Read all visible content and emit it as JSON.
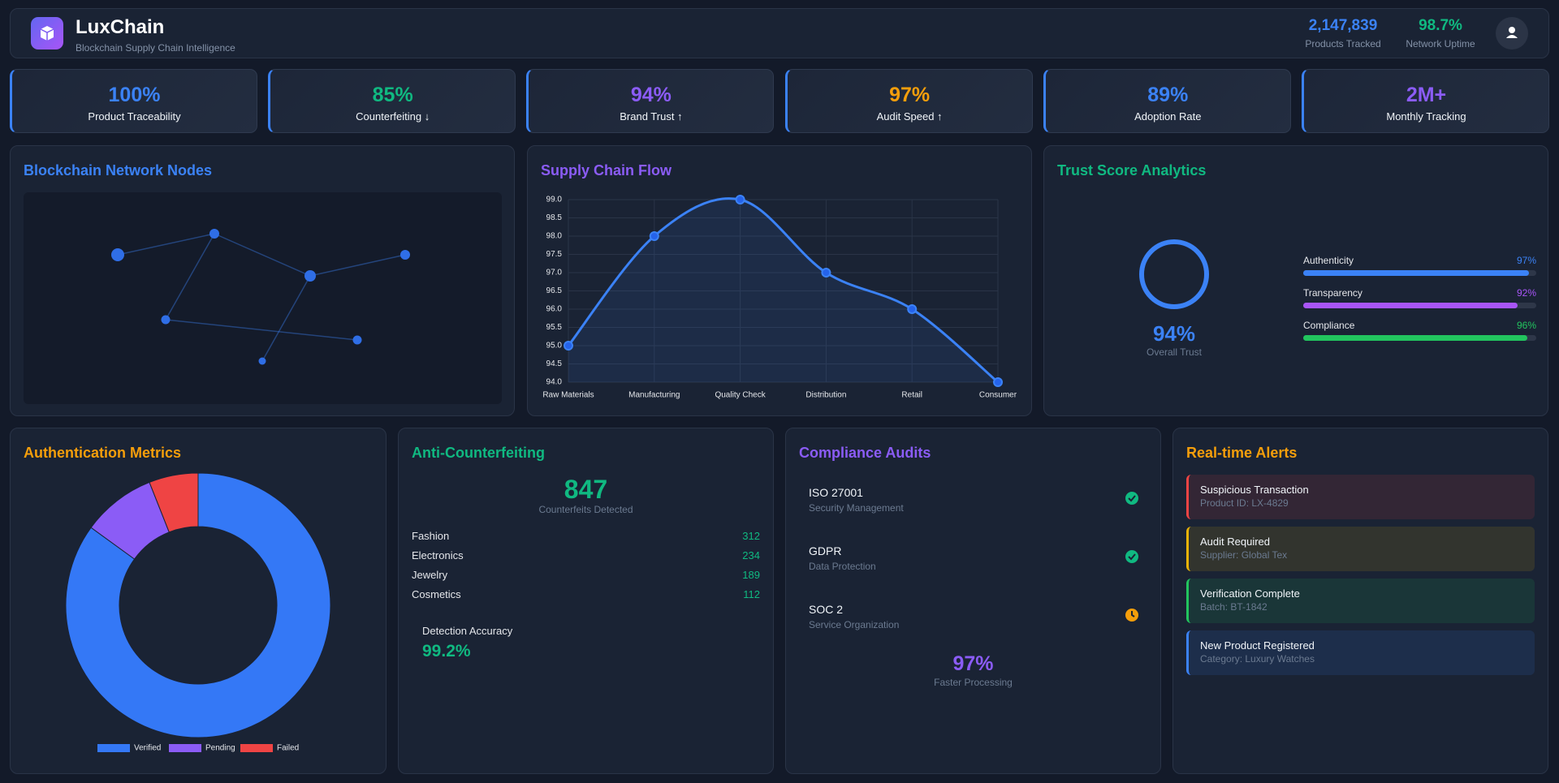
{
  "header": {
    "title": "LuxChain",
    "subtitle": "Blockchain Supply Chain Intelligence",
    "stats": [
      {
        "value": "2,147,839",
        "label": "Products Tracked",
        "color": "#3b82f6"
      },
      {
        "value": "98.7%",
        "label": "Network Uptime",
        "color": "#10b981"
      }
    ]
  },
  "kpis": [
    {
      "value": "100%",
      "label": "Product Traceability",
      "color": "#3b82f6"
    },
    {
      "value": "85%",
      "label": "Counterfeiting ↓",
      "color": "#10b981"
    },
    {
      "value": "94%",
      "label": "Brand Trust ↑",
      "color": "#8b5cf6"
    },
    {
      "value": "97%",
      "label": "Audit Speed ↑",
      "color": "#f59e0b"
    },
    {
      "value": "89%",
      "label": "Adoption Rate",
      "color": "#3b82f6"
    },
    {
      "value": "2M+",
      "label": "Monthly Tracking",
      "color": "#8b5cf6"
    }
  ],
  "network": {
    "title": "Blockchain Network Nodes"
  },
  "chart_data": [
    {
      "type": "line",
      "title": "Supply Chain Flow",
      "color": "#3b82f6",
      "categories": [
        "Raw Materials",
        "Manufacturing",
        "Quality Check",
        "Distribution",
        "Retail",
        "Consumer"
      ],
      "values": [
        95,
        98,
        99,
        97,
        96,
        94
      ],
      "ylim": [
        94,
        99
      ],
      "yticks": [
        {
          "value": 94,
          "label": "94.0"
        },
        {
          "value": 94.5,
          "label": "94.5"
        },
        {
          "value": 95,
          "label": "95.0"
        },
        {
          "value": 95.5,
          "label": "95.5"
        },
        {
          "value": 96,
          "label": "96.0"
        },
        {
          "value": 96.5,
          "label": "96.5"
        },
        {
          "value": 97,
          "label": "97.0"
        },
        {
          "value": 97.5,
          "label": "97.5"
        },
        {
          "value": 98,
          "label": "98.0"
        },
        {
          "value": 98.5,
          "label": "98.5"
        },
        {
          "value": 99,
          "label": "99.0"
        }
      ],
      "grid": true
    },
    {
      "type": "doughnut",
      "title": "Authentication Metrics",
      "categories": [
        "Verified",
        "Pending",
        "Failed"
      ],
      "values": [
        85,
        9,
        6
      ],
      "colors": [
        "#3478f6",
        "#8b5cf6",
        "#ef4444"
      ],
      "legend": "bottom"
    }
  ],
  "trust": {
    "title": "Trust Score Analytics",
    "overall": "94%",
    "overall_label": "Overall Trust",
    "xlim": [
      0,
      100
    ],
    "metrics": [
      {
        "name": "Authenticity",
        "value": 97,
        "label": "97%",
        "color": "#3b82f6"
      },
      {
        "name": "Transparency",
        "value": 92,
        "label": "92%",
        "color": "#a855f7"
      },
      {
        "name": "Compliance",
        "value": 96,
        "label": "96%",
        "color": "#22c55e"
      }
    ]
  },
  "anti_counterfeiting": {
    "title": "Anti-Counterfeiting",
    "total": "847",
    "total_label": "Counterfeits Detected",
    "categories": [
      {
        "name": "Fashion",
        "count": 312
      },
      {
        "name": "Electronics",
        "count": 234
      },
      {
        "name": "Jewelry",
        "count": 189
      },
      {
        "name": "Cosmetics",
        "count": 112
      }
    ],
    "accuracy_label": "Detection Accuracy",
    "accuracy": "99.2%"
  },
  "compliance": {
    "title": "Compliance Audits",
    "audits": [
      {
        "name": "ISO 27001",
        "description": "Security Management",
        "status": "complete"
      },
      {
        "name": "GDPR",
        "description": "Data Protection",
        "status": "complete"
      },
      {
        "name": "SOC 2",
        "description": "Service Organization",
        "status": "pending"
      }
    ],
    "metric": "97%",
    "metric_label": "Faster Processing"
  },
  "alerts": {
    "title": "Real-time Alerts",
    "items": [
      {
        "title": "Suspicious Transaction",
        "detail": "Product ID: LX-4829",
        "color": "#ef4444"
      },
      {
        "title": "Audit Required",
        "detail": "Supplier: Global Tex",
        "color": "#eab308"
      },
      {
        "title": "Verification Complete",
        "detail": "Batch: BT-1842",
        "color": "#22c55e"
      },
      {
        "title": "New Product Registered",
        "detail": "Category: Luxury Watches",
        "color": "#3b82f6"
      }
    ]
  }
}
